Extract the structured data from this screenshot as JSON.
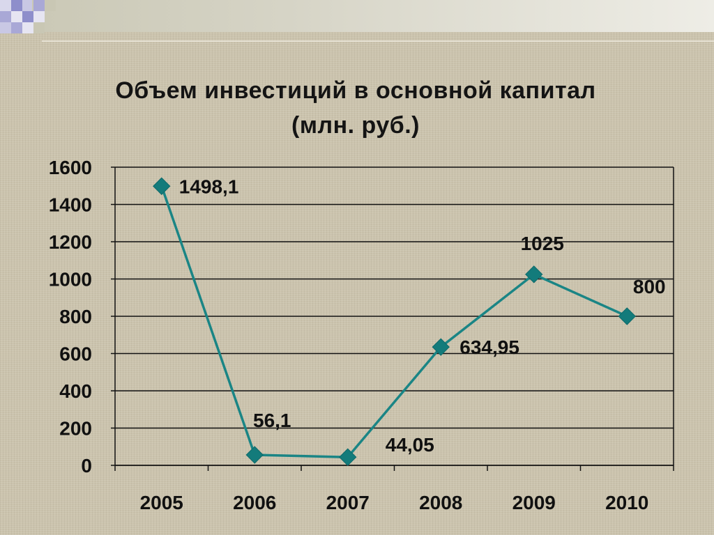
{
  "slide": {
    "title_line1": "Объем инвестиций в основной капитал",
    "title_line2": "(млн. руб.)"
  },
  "colors": {
    "series": "#1a8585",
    "marker": "#137b7b",
    "grid": "#111111"
  },
  "chart_data": {
    "type": "line",
    "title": "Объем инвестиций в основной капитал (млн. руб.)",
    "categories": [
      "2005",
      "2006",
      "2007",
      "2008",
      "2009",
      "2010"
    ],
    "series": [
      {
        "values": [
          1498.1,
          56.1,
          44.05,
          634.95,
          1025,
          800
        ],
        "data_labels": [
          "1498,1",
          "56,1",
          "44,05",
          "634,95",
          "1025",
          "800"
        ]
      }
    ],
    "ylim": [
      0,
      1600
    ],
    "y_ticks": [
      0,
      200,
      400,
      600,
      800,
      1000,
      1200,
      1400,
      1600
    ],
    "grid": true,
    "legend": "none",
    "marker": "diamond"
  }
}
